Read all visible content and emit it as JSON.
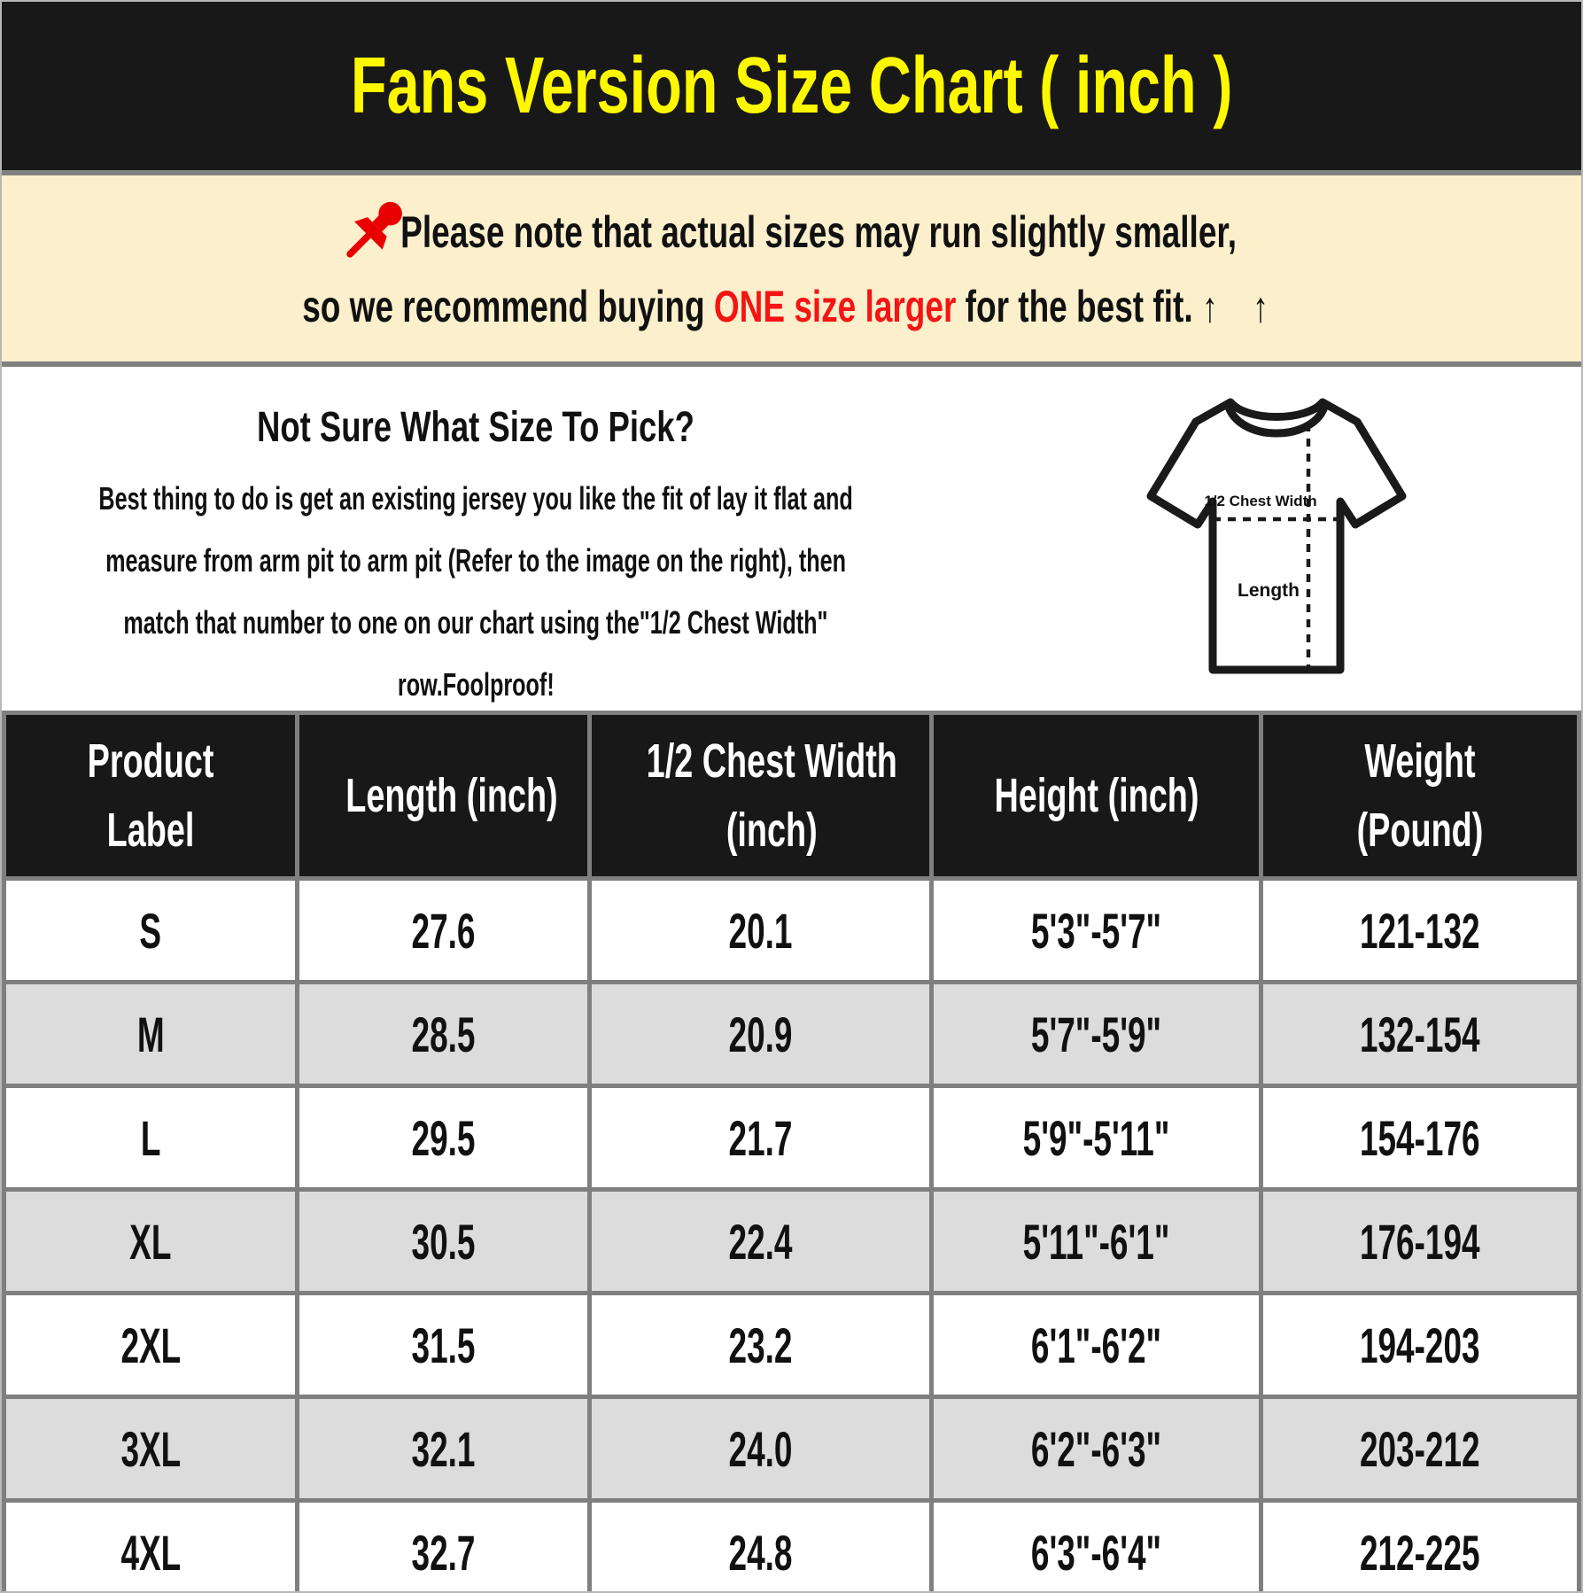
{
  "header": {
    "title": "Fans Version Size Chart ( inch )"
  },
  "colors": {
    "title_bg": "#181818",
    "title_text": "#fdf800",
    "notice_bg": "#fbefcc",
    "highlight_red": "#f51414",
    "row_alt_gray": "#dcdcdc",
    "grid_gray": "#7f7f7f"
  },
  "notice": {
    "pin_icon": "pushpin-icon",
    "line1": "Please note that actual sizes may run slightly smaller,",
    "line2_pre": "so we recommend buying ",
    "line2_highlight": "ONE size larger",
    "line2_post": " for the best fit.",
    "arrows": "↑ ↑"
  },
  "guide": {
    "heading": "Not Sure What Size To Pick?",
    "lines": [
      "Best thing to do is get an existing jersey you like the fit of lay it flat and",
      "measure from arm pit to arm pit (Refer to the image on the right), then",
      "match that number to one on our chart using the\"1/2 Chest Width\"",
      "row.Foolproof!"
    ],
    "diagram": {
      "chest_label": "1/2 Chest Width",
      "length_label": "Length"
    }
  },
  "chart_data": {
    "type": "table",
    "title": "Fans Version Size Chart ( inch )",
    "columns": [
      "Product\nLabel",
      "Length (inch)",
      "1/2 Chest Width\n(inch)",
      "Height (inch)",
      "Weight\n(Pound)"
    ],
    "rows": [
      [
        "S",
        "27.6",
        "20.1",
        "5'3\"-5'7\"",
        "121-132"
      ],
      [
        "M",
        "28.5",
        "20.9",
        "5'7\"-5'9\"",
        "132-154"
      ],
      [
        "L",
        "29.5",
        "21.7",
        "5'9\"-5'11\"",
        "154-176"
      ],
      [
        "XL",
        "30.5",
        "22.4",
        "5'11\"-6'1\"",
        "176-194"
      ],
      [
        "2XL",
        "31.5",
        "23.2",
        "6'1\"-6'2\"",
        "194-203"
      ],
      [
        "3XL",
        "32.1",
        "24.0",
        "6'2\"-6'3\"",
        "203-212"
      ],
      [
        "4XL",
        "32.7",
        "24.8",
        "6'3\"-6'4\"",
        "212-225"
      ]
    ]
  }
}
